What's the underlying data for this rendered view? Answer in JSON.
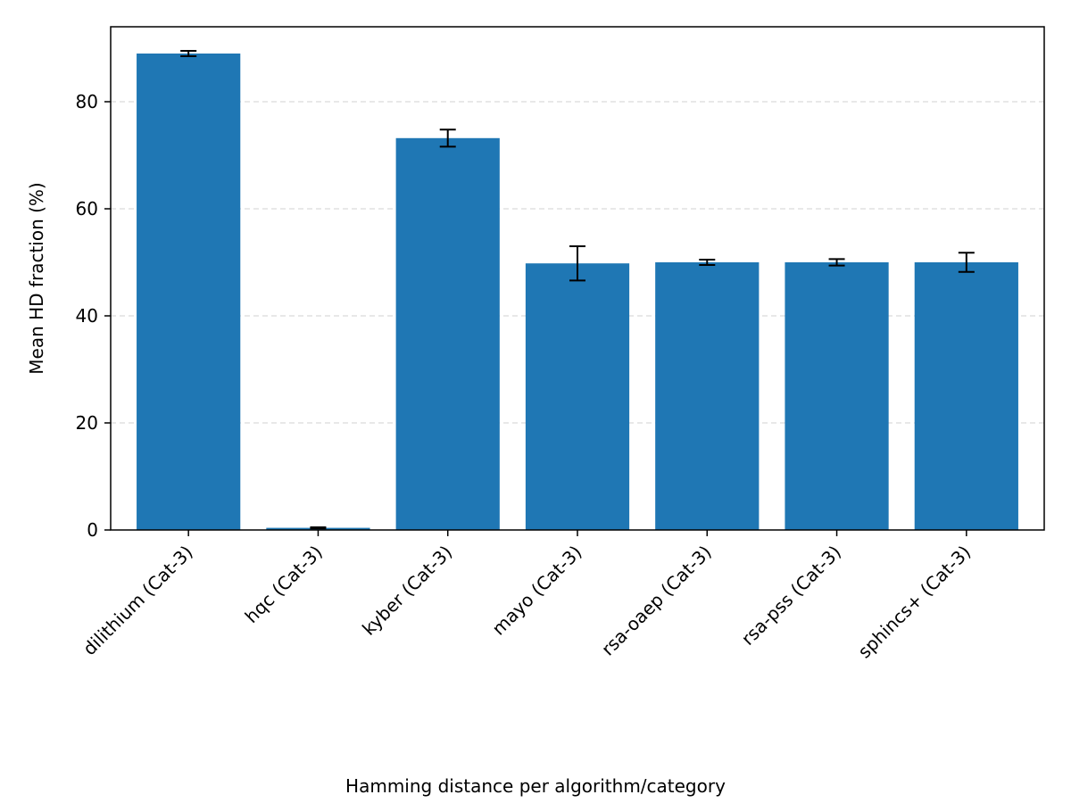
{
  "chart_data": {
    "type": "bar",
    "title": "",
    "xlabel": "Hamming distance per algorithm/category",
    "ylabel": "Mean HD fraction (%)",
    "ylim": [
      0,
      94
    ],
    "yticks": [
      0,
      20,
      40,
      60,
      80
    ],
    "grid": "y-dashed",
    "categories": [
      "dilithium (Cat-3)",
      "hqc (Cat-3)",
      "kyber (Cat-3)",
      "mayo (Cat-3)",
      "rsa-oaep (Cat-3)",
      "rsa-pss (Cat-3)",
      "sphincs+ (Cat-3)"
    ],
    "values": [
      89.0,
      0.4,
      73.2,
      49.8,
      50.0,
      50.0,
      50.0
    ],
    "errors": [
      0.5,
      0.1,
      1.6,
      3.2,
      0.5,
      0.6,
      1.8
    ],
    "bar_color": "#1f77b4",
    "error_color": "#000000",
    "grid_color": "#d9d9d9"
  }
}
